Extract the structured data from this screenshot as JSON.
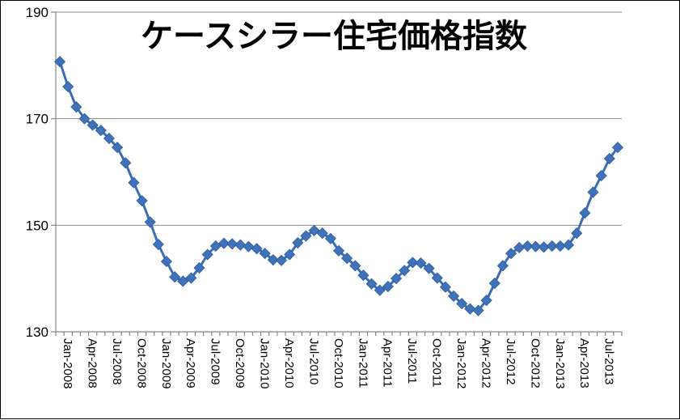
{
  "chart_data": {
    "type": "line",
    "title": "ケースシラー住宅価格指数",
    "xlabel": "",
    "ylabel": "",
    "ylim": [
      130,
      190
    ],
    "yticks": [
      130,
      150,
      170,
      190
    ],
    "grid": true,
    "legend": "none",
    "colors": {
      "line": "#3A6DB5",
      "marker": "#3F72B8"
    },
    "xtick_labels": [
      "Jan-2008",
      "Apr-2008",
      "Jul-2008",
      "Oct-2008",
      "Jan-2009",
      "Apr-2009",
      "Jul-2009",
      "Oct-2009",
      "Jan-2010",
      "Apr-2010",
      "Jul-2010",
      "Oct-2010",
      "Jan-2011",
      "Apr-2011",
      "Jul-2011",
      "Oct-2011",
      "Jan-2012",
      "Apr-2012",
      "Jul-2012",
      "Oct-2012",
      "Jan-2013",
      "Apr-2013",
      "Jul-2013"
    ],
    "x": [
      "Jan-2008",
      "Feb-2008",
      "Mar-2008",
      "Apr-2008",
      "May-2008",
      "Jun-2008",
      "Jul-2008",
      "Aug-2008",
      "Sep-2008",
      "Oct-2008",
      "Nov-2008",
      "Dec-2008",
      "Jan-2009",
      "Feb-2009",
      "Mar-2009",
      "Apr-2009",
      "May-2009",
      "Jun-2009",
      "Jul-2009",
      "Aug-2009",
      "Sep-2009",
      "Oct-2009",
      "Nov-2009",
      "Dec-2009",
      "Jan-2010",
      "Feb-2010",
      "Mar-2010",
      "Apr-2010",
      "May-2010",
      "Jun-2010",
      "Jul-2010",
      "Aug-2010",
      "Sep-2010",
      "Oct-2010",
      "Nov-2010",
      "Dec-2010",
      "Jan-2011",
      "Feb-2011",
      "Mar-2011",
      "Apr-2011",
      "May-2011",
      "Jun-2011",
      "Jul-2011",
      "Aug-2011",
      "Sep-2011",
      "Oct-2011",
      "Nov-2011",
      "Dec-2011",
      "Jan-2012",
      "Feb-2012",
      "Mar-2012",
      "Apr-2012",
      "May-2012",
      "Jun-2012",
      "Jul-2012",
      "Aug-2012",
      "Sep-2012",
      "Oct-2012",
      "Nov-2012",
      "Dec-2012",
      "Jan-2013",
      "Feb-2013",
      "Mar-2013",
      "Apr-2013",
      "May-2013",
      "Jun-2013",
      "Jul-2013",
      "Aug-2013",
      "Sep-2013"
    ],
    "series": [
      {
        "values": [
          180.7,
          176.0,
          172.2,
          170.0,
          168.8,
          167.8,
          166.3,
          164.6,
          161.7,
          158.0,
          154.6,
          150.6,
          146.4,
          143.2,
          140.3,
          139.5,
          140.1,
          142.0,
          144.5,
          146.1,
          146.6,
          146.5,
          146.3,
          146.0,
          145.6,
          144.7,
          143.5,
          143.4,
          144.5,
          146.7,
          148.0,
          149.0,
          148.5,
          147.5,
          145.2,
          143.8,
          142.4,
          140.6,
          139.0,
          137.8,
          138.5,
          140.0,
          141.5,
          143.0,
          142.9,
          141.9,
          140.1,
          138.4,
          136.7,
          135.3,
          134.3,
          134.0,
          135.9,
          139.1,
          142.4,
          144.7,
          145.8,
          146.1,
          146.0,
          145.9,
          146.1,
          146.1,
          146.3,
          148.5,
          152.3,
          156.2,
          159.3,
          162.5,
          164.6
        ]
      }
    ]
  }
}
